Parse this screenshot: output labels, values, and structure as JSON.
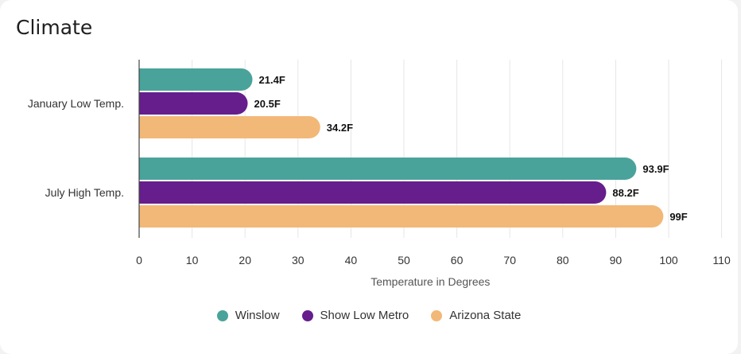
{
  "card": {
    "title": "Climate"
  },
  "chart_data": {
    "type": "bar",
    "orientation": "horizontal",
    "title": "Climate",
    "xlabel": "Temperature in Degrees",
    "ylabel": "",
    "xlim": [
      0,
      110
    ],
    "xticks": [
      0,
      10,
      20,
      30,
      40,
      50,
      60,
      70,
      80,
      90,
      100,
      110
    ],
    "categories": [
      "January Low Temp.",
      "July High Temp."
    ],
    "series": [
      {
        "name": "Winslow",
        "color": "#4aa39b",
        "values": [
          21.4,
          93.9
        ],
        "labels": [
          "21.4F",
          "93.9F"
        ]
      },
      {
        "name": "Show Low Metro",
        "color": "#651e8c",
        "values": [
          20.5,
          88.2
        ],
        "labels": [
          "20.5F",
          "88.2F"
        ]
      },
      {
        "name": "Arizona State",
        "color": "#f2b878",
        "values": [
          34.2,
          99
        ],
        "labels": [
          "34.2F",
          "99F"
        ]
      }
    ],
    "grid": true,
    "legend": "bottom"
  }
}
